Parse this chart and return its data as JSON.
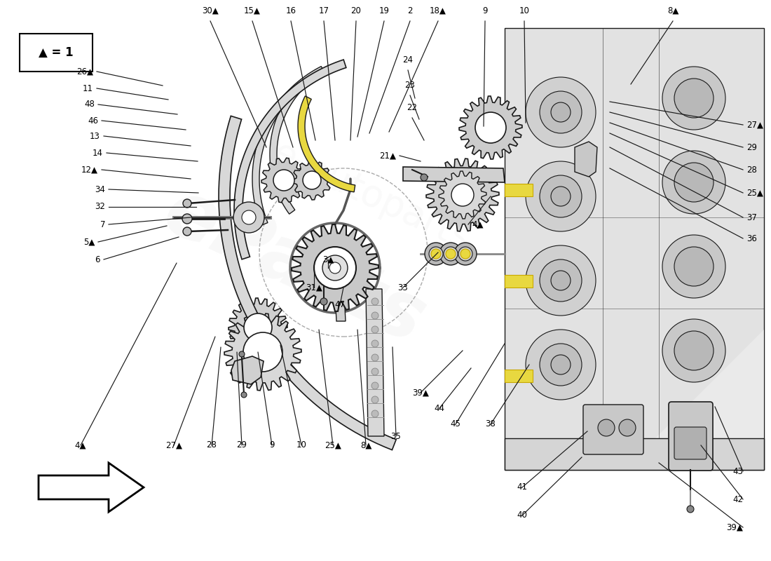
{
  "bg_color": "#ffffff",
  "lc": "#1a1a1a",
  "lc_light": "#555555",
  "fill_gray_light": "#e8e8e8",
  "fill_gray_mid": "#d0d0d0",
  "fill_gray_dark": "#b8b8b8",
  "fill_white": "#ffffff",
  "fill_yellow": "#e8d840",
  "fill_gold": "#c8a800",
  "watermark1": "#d8d8d8",
  "arrow_fill": "#ffffff",
  "engine_bg": "#dcdcdc",
  "top_labels": [
    [
      "4▲",
      115,
      165,
      252,
      425
    ],
    [
      "27▲",
      248,
      165,
      307,
      320
    ],
    [
      "28",
      302,
      165,
      315,
      305
    ],
    [
      "29",
      345,
      165,
      338,
      298
    ],
    [
      "9",
      388,
      165,
      368,
      298
    ],
    [
      "10",
      430,
      165,
      400,
      308
    ],
    [
      "25▲",
      475,
      165,
      455,
      330
    ],
    [
      "8▲",
      522,
      165,
      510,
      330
    ]
  ],
  "right_labels_top": [
    [
      "39▲",
      1060,
      48,
      940,
      140
    ],
    [
      "42",
      1060,
      88,
      1000,
      165
    ],
    [
      "43",
      1060,
      128,
      1020,
      220
    ],
    [
      "40",
      745,
      65,
      830,
      148
    ],
    [
      "41",
      745,
      105,
      838,
      185
    ]
  ],
  "right_labels_mid": [
    [
      "45",
      650,
      195,
      720,
      310
    ],
    [
      "38",
      700,
      195,
      755,
      280
    ],
    [
      "44",
      627,
      218,
      672,
      275
    ],
    [
      "39▲",
      600,
      240,
      660,
      300
    ],
    [
      "35",
      565,
      178,
      560,
      305
    ],
    [
      "33",
      575,
      390,
      625,
      440
    ],
    [
      "3▲",
      468,
      430,
      468,
      418
    ],
    [
      "47",
      485,
      365,
      490,
      390
    ],
    [
      "31▲",
      448,
      390,
      448,
      420
    ]
  ],
  "right_col_labels": [
    [
      "36",
      1060,
      460,
      870,
      560
    ],
    [
      "37",
      1060,
      490,
      870,
      590
    ],
    [
      "25▲",
      1060,
      525,
      870,
      610
    ],
    [
      "28",
      1060,
      558,
      870,
      625
    ],
    [
      "29",
      1060,
      590,
      870,
      640
    ],
    [
      "27▲",
      1060,
      622,
      870,
      655
    ],
    [
      "4▲",
      668,
      480,
      700,
      520
    ]
  ],
  "left_labels": [
    [
      "6",
      148,
      430,
      255,
      462
    ],
    [
      "5▲",
      140,
      455,
      238,
      478
    ],
    [
      "7",
      155,
      480,
      272,
      490
    ],
    [
      "32",
      155,
      505,
      280,
      505
    ],
    [
      "34",
      155,
      530,
      283,
      525
    ],
    [
      "12▲",
      145,
      558,
      272,
      545
    ],
    [
      "14",
      152,
      582,
      282,
      570
    ],
    [
      "13",
      148,
      606,
      272,
      592
    ],
    [
      "46",
      145,
      628,
      265,
      615
    ],
    [
      "48",
      140,
      651,
      253,
      637
    ],
    [
      "11",
      138,
      674,
      240,
      658
    ],
    [
      "26▲",
      138,
      698,
      232,
      678
    ],
    [
      "21▲",
      570,
      578,
      600,
      570
    ]
  ],
  "bottom_labels": [
    [
      "30▲",
      300,
      770,
      380,
      590
    ],
    [
      "15▲",
      360,
      770,
      418,
      590
    ],
    [
      "16",
      415,
      770,
      450,
      600
    ],
    [
      "17",
      462,
      770,
      478,
      600
    ],
    [
      "20",
      508,
      770,
      500,
      600
    ],
    [
      "19",
      548,
      770,
      510,
      605
    ],
    [
      "2",
      585,
      770,
      527,
      610
    ],
    [
      "18▲",
      625,
      770,
      555,
      612
    ],
    [
      "9",
      692,
      770,
      690,
      620
    ],
    [
      "10",
      748,
      770,
      750,
      625
    ],
    [
      "8▲",
      960,
      770,
      900,
      680
    ],
    [
      "22",
      588,
      632,
      605,
      600
    ],
    [
      "23",
      585,
      664,
      598,
      630
    ],
    [
      "24",
      582,
      700,
      592,
      660
    ]
  ]
}
